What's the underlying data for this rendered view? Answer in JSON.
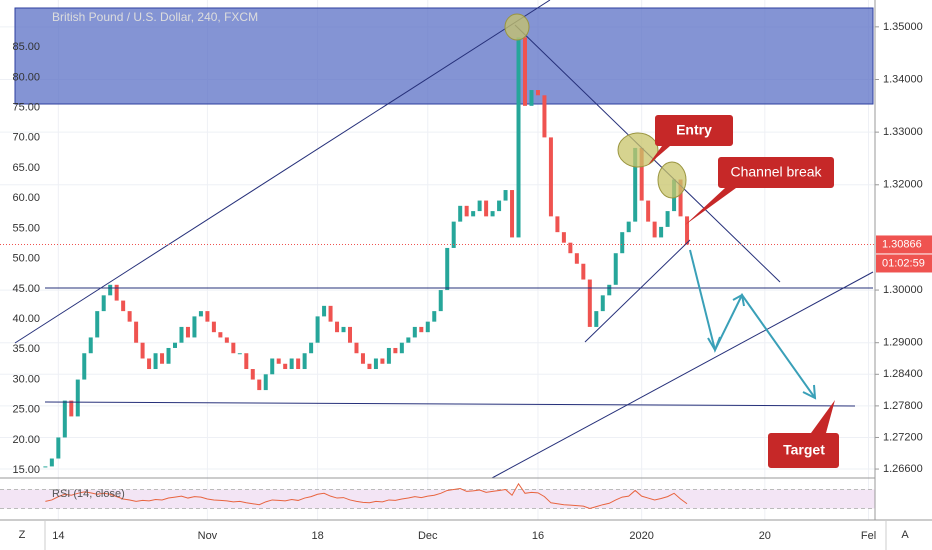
{
  "chart_data": {
    "type": "candlestick",
    "title": "British Pound / U.S. Dollar, 240, FXCM",
    "values": [
      1.2665,
      1.268,
      1.272,
      1.279,
      1.276,
      1.283,
      1.288,
      1.291,
      1.296,
      1.299,
      1.301,
      1.298,
      1.296,
      1.294,
      1.29,
      1.287,
      1.285,
      1.288,
      1.286,
      1.289,
      1.29,
      1.293,
      1.291,
      1.295,
      1.296,
      1.294,
      1.292,
      1.291,
      1.29,
      1.288,
      1.288,
      1.285,
      1.283,
      1.281,
      1.284,
      1.287,
      1.286,
      1.285,
      1.287,
      1.285,
      1.288,
      1.29,
      1.295,
      1.297,
      1.294,
      1.292,
      1.293,
      1.29,
      1.288,
      1.286,
      1.285,
      1.287,
      1.286,
      1.289,
      1.288,
      1.29,
      1.291,
      1.293,
      1.292,
      1.294,
      1.296,
      1.3,
      1.308,
      1.313,
      1.316,
      1.314,
      1.315,
      1.317,
      1.314,
      1.315,
      1.317,
      1.319,
      1.31,
      1.348,
      1.335,
      1.338,
      1.337,
      1.329,
      1.314,
      1.311,
      1.309,
      1.307,
      1.305,
      1.302,
      1.293,
      1.296,
      1.299,
      1.301,
      1.307,
      1.311,
      1.313,
      1.327,
      1.317,
      1.313,
      1.31,
      1.312,
      1.315,
      1.321,
      1.314,
      1.30866
    ],
    "up_color": "#26a69a",
    "down_color": "#ef5350",
    "xlim": [
      -7,
      128
    ],
    "xticks": [
      {
        "value": 2,
        "label": "14"
      },
      {
        "value": 25,
        "label": "Nov"
      },
      {
        "value": 42,
        "label": "18"
      },
      {
        "value": 59,
        "label": "Dec"
      },
      {
        "value": 76,
        "label": "16"
      },
      {
        "value": 92,
        "label": "2020"
      },
      {
        "value": 111,
        "label": "20"
      },
      {
        "value": 127,
        "label": "Fel"
      }
    ],
    "ylim": [
      1.2643,
      1.3551
    ],
    "yticks": [
      {
        "value": 1.35,
        "label": "1.35000"
      },
      {
        "value": 1.34,
        "label": "1.34000"
      },
      {
        "value": 1.33,
        "label": "1.33000"
      },
      {
        "value": 1.32,
        "label": "1.32000"
      },
      {
        "value": 1.3,
        "label": "1.30000"
      },
      {
        "value": 1.29,
        "label": "1.29000"
      },
      {
        "value": 1.284,
        "label": "1.28400"
      },
      {
        "value": 1.278,
        "label": "1.27800"
      },
      {
        "value": 1.272,
        "label": "1.27200"
      },
      {
        "value": 1.266,
        "label": "1.26600"
      }
    ],
    "y2lim": [
      13.7,
      92.8
    ],
    "y2ticks": [
      {
        "value": 85,
        "label": "85.00"
      },
      {
        "value": 80,
        "label": "80.00"
      },
      {
        "value": 75,
        "label": "75.00"
      },
      {
        "value": 70,
        "label": "70.00"
      },
      {
        "value": 65,
        "label": "65.00"
      },
      {
        "value": 60,
        "label": "60.00"
      },
      {
        "value": 55,
        "label": "55.00"
      },
      {
        "value": 50,
        "label": "50.00"
      },
      {
        "value": 45,
        "label": "45.00"
      },
      {
        "value": 40,
        "label": "40.00"
      },
      {
        "value": 35,
        "label": "35.00"
      },
      {
        "value": 30,
        "label": "30.00"
      },
      {
        "value": 25,
        "label": "25.00"
      },
      {
        "value": 20,
        "label": "20.00"
      },
      {
        "value": 15,
        "label": "15.00"
      }
    ],
    "grid": true,
    "countdown": "01:02:59",
    "annotations": [
      "Entry",
      "Channel break",
      "Target"
    ],
    "rsi": {
      "title": "RSI (14, close)",
      "color": "#e8643f",
      "ylim": [
        10,
        90
      ],
      "band": [
        30,
        70
      ],
      "values": [
        45,
        48,
        55,
        60,
        58,
        62,
        65,
        63,
        60,
        62,
        60,
        55,
        50,
        48,
        45,
        47,
        46,
        49,
        48,
        52,
        54,
        56,
        52,
        55,
        54,
        50,
        48,
        47,
        46,
        44,
        45,
        42,
        40,
        38,
        44,
        48,
        47,
        46,
        49,
        47,
        52,
        55,
        60,
        62,
        56,
        52,
        53,
        48,
        45,
        43,
        42,
        45,
        44,
        48,
        47,
        50,
        52,
        55,
        53,
        56,
        58,
        62,
        68,
        70,
        72,
        66,
        67,
        69,
        64,
        66,
        68,
        70,
        58,
        82,
        62,
        64,
        63,
        55,
        42,
        40,
        38,
        37,
        36,
        35,
        30,
        34,
        38,
        41,
        48,
        54,
        56,
        68,
        56,
        52,
        48,
        51,
        55,
        62,
        50,
        40
      ]
    },
    "toolbar": {
      "left": "Z",
      "right": "A"
    }
  }
}
